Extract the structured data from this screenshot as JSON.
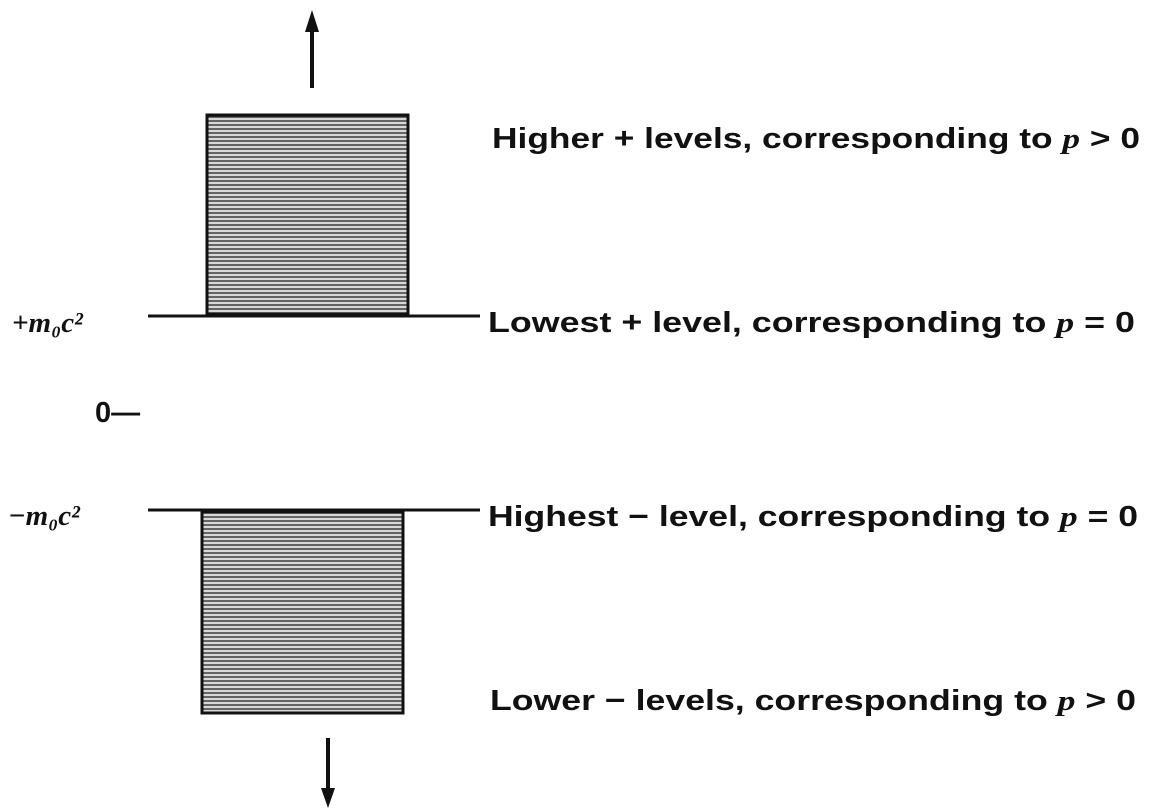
{
  "left_labels": {
    "positive": "+m₀c²",
    "zero": "0—",
    "negative": "−m₀c²"
  },
  "right_labels": [
    {
      "text": "Higher + levels, corresponding to ",
      "var": "p",
      "condition": " > 0"
    },
    {
      "text": "Lowest + level, corresponding to ",
      "var": "p",
      "condition": " = 0"
    },
    {
      "text": "Highest − level, corresponding to ",
      "var": "p",
      "condition": " = 0"
    },
    {
      "text": "Lower − levels, corresponding to ",
      "var": "p",
      "condition": " > 0"
    }
  ]
}
